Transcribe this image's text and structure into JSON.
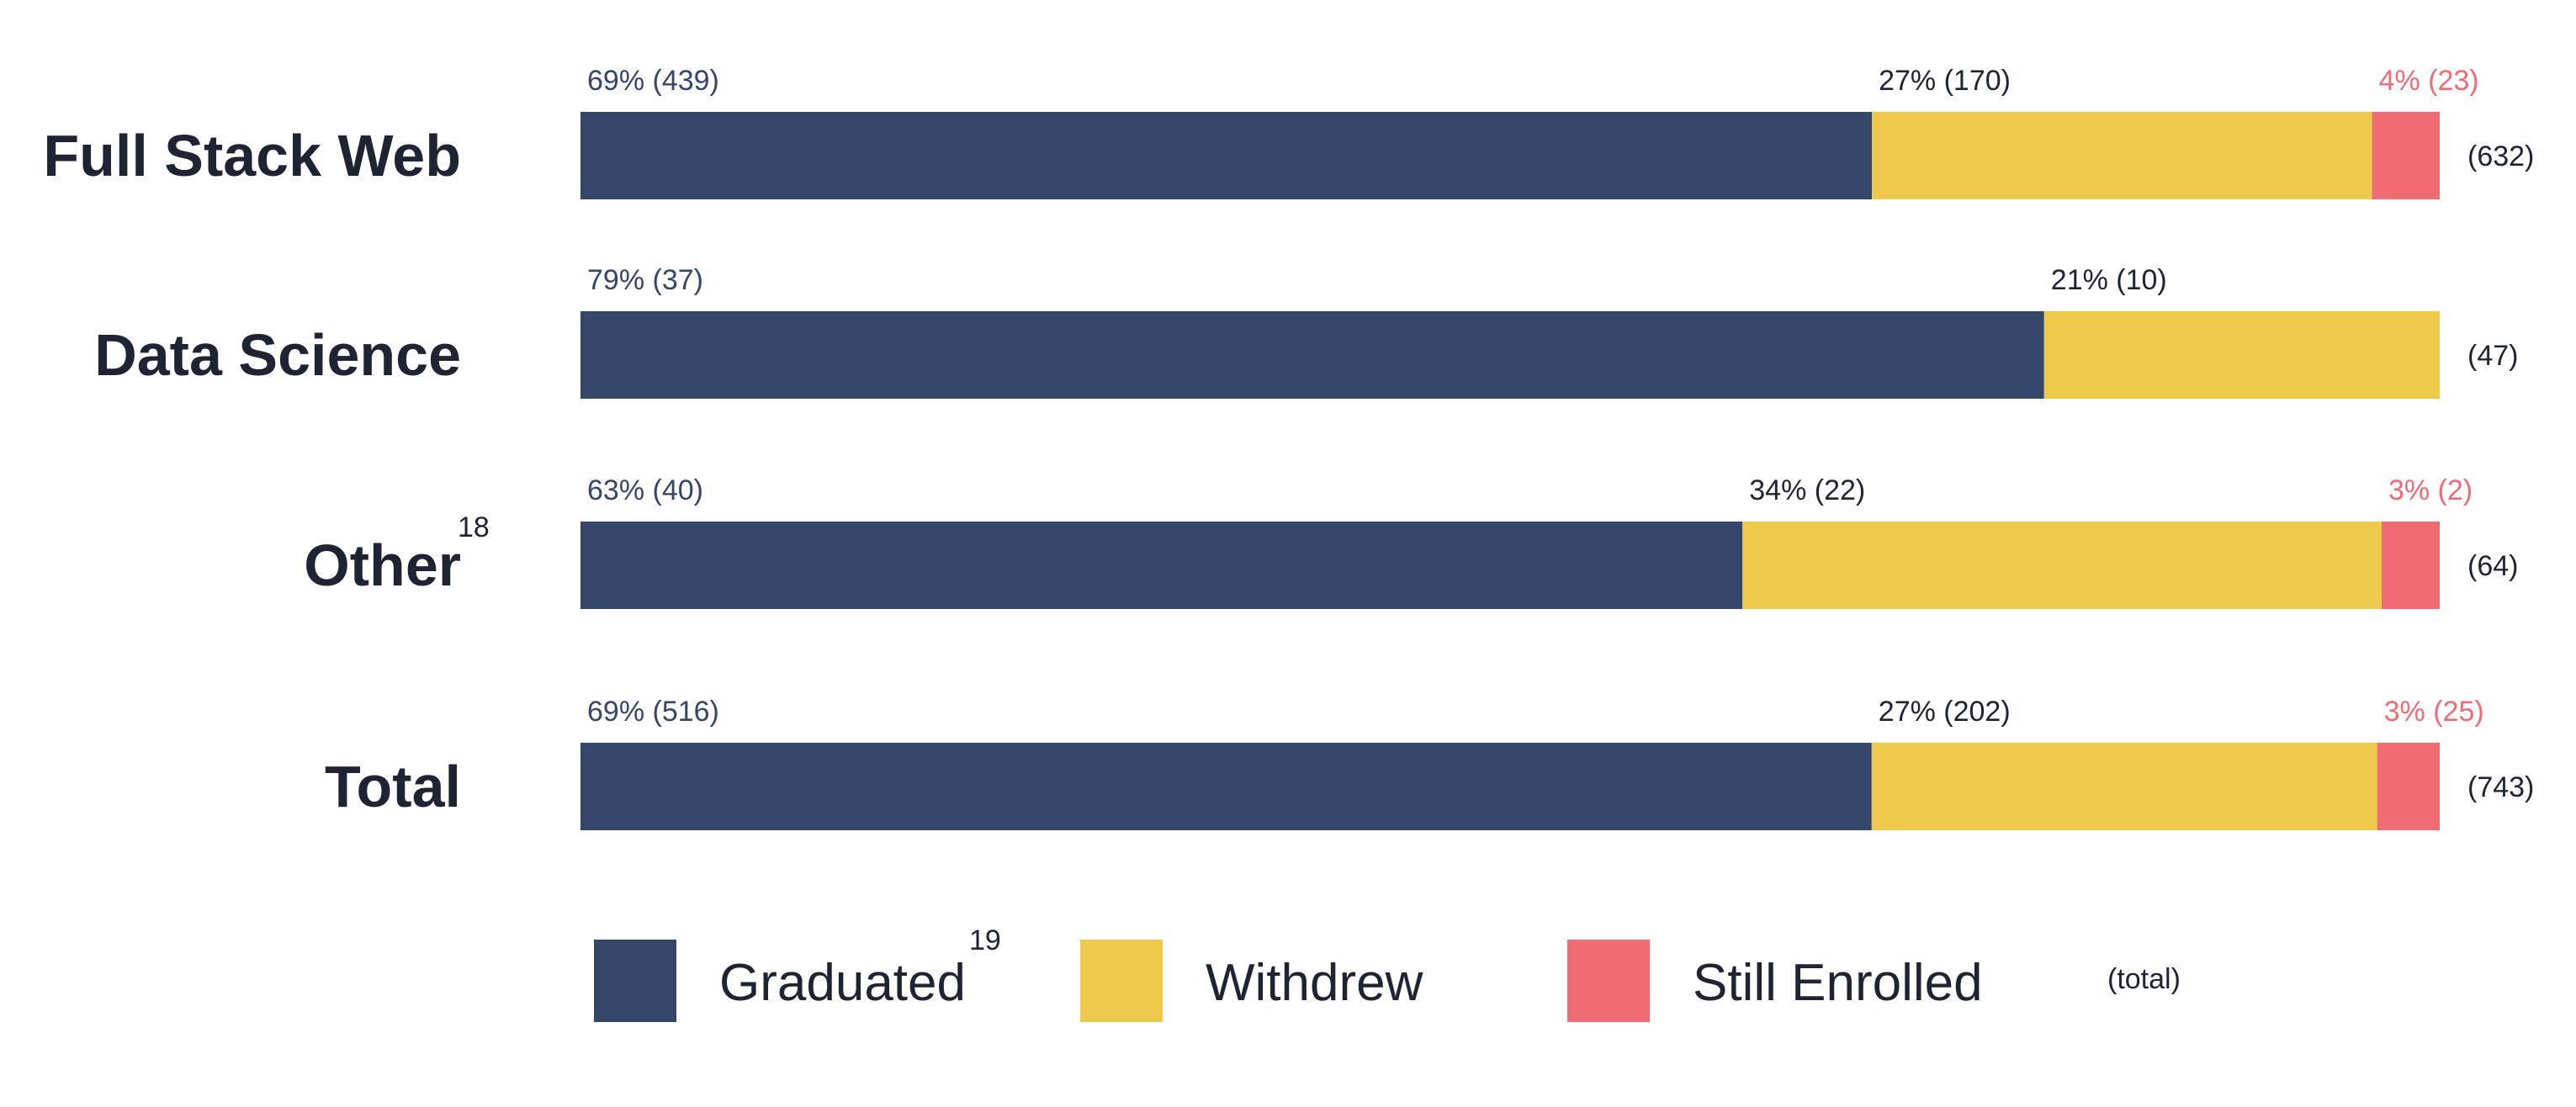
{
  "chart_data": {
    "type": "bar",
    "orientation": "horizontal",
    "stacked": "percent",
    "categories": [
      "Full Stack Web",
      "Data Science",
      "Other",
      "Total"
    ],
    "category_footnotes": [
      "",
      "",
      "18",
      ""
    ],
    "series": [
      {
        "name": "Graduated",
        "footnote": "19",
        "color": "#34466a",
        "percent": [
          69,
          79,
          63,
          69
        ],
        "counts": [
          439,
          37,
          40,
          516
        ],
        "labels": [
          "69% (439)",
          "79% (37)",
          "63% (40)",
          "69% (516)"
        ],
        "label_color": "#34466a"
      },
      {
        "name": "Withdrew",
        "footnote": "",
        "color": "#efc94c",
        "percent": [
          27,
          21,
          34,
          27
        ],
        "counts": [
          170,
          10,
          22,
          202
        ],
        "labels": [
          "27% (170)",
          "21% (10)",
          "34% (22)",
          "27% (202)"
        ],
        "label_color": "#1e2433"
      },
      {
        "name": "Still Enrolled",
        "footnote": "",
        "color": "#f06b73",
        "percent": [
          4,
          0,
          3,
          3
        ],
        "counts": [
          23,
          0,
          2,
          25
        ],
        "labels": [
          "4% (23)",
          "",
          "3% (2)",
          "3% (25)"
        ],
        "label_color": "#f06b73"
      }
    ],
    "totals": [
      632,
      47,
      64,
      743
    ],
    "total_labels": [
      "(632)",
      "(47)",
      "(64)",
      "(743)"
    ],
    "legend": {
      "position": "bottom",
      "total_key_label": "(total)"
    },
    "grid": false,
    "xlim": [
      0,
      100
    ]
  }
}
